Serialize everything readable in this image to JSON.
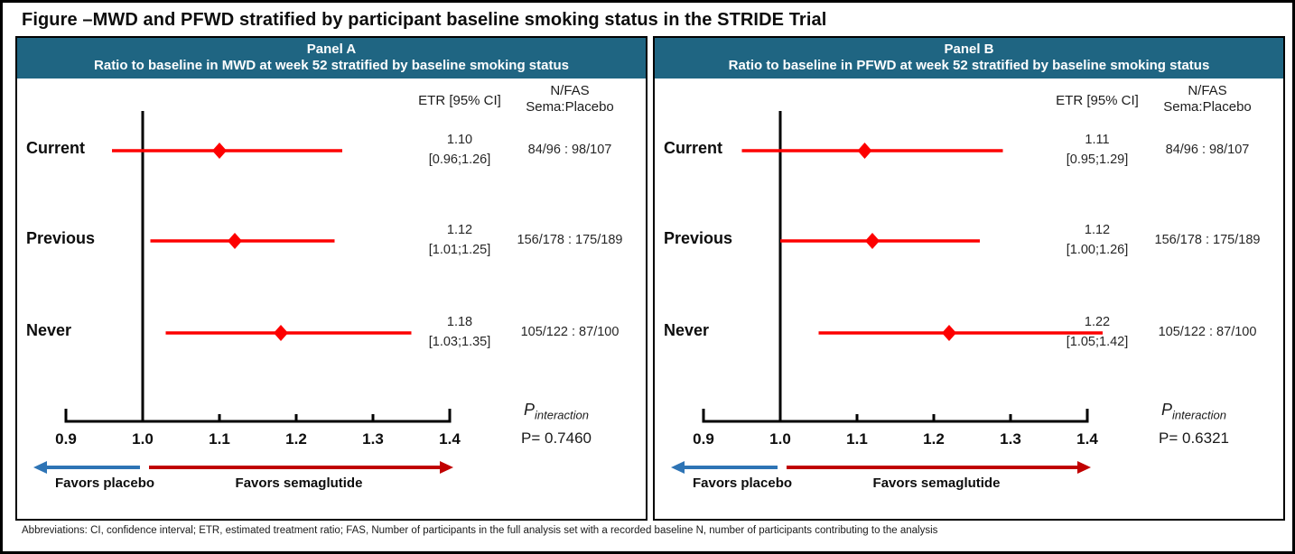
{
  "figure": {
    "title": "Figure –MWD and PFWD stratified by participant baseline smoking status in the STRIDE Trial",
    "footnote": "Abbreviations: CI, confidence interval; ETR, estimated treatment ratio; FAS, Number of participants in the full analysis set with a recorded baseline N, number of participants contributing to the analysis"
  },
  "colors": {
    "panel_header_bg": "#1f6582",
    "ci_line_red": "#fd0000",
    "favors_left_blue": "#2e74b5",
    "favors_right_red": "#c00000",
    "axis_black": "#000000"
  },
  "chart_data": [
    {
      "type": "forest",
      "panel_label": "Panel A",
      "subtitle": "Ratio to baseline in MWD at week 52 stratified by baseline smoking status",
      "col_headers": {
        "etr": "ETR [95% CI]",
        "nfas_line1": "N/FAS",
        "nfas_line2": "Sema:Placebo"
      },
      "x_range": [
        0.9,
        1.4
      ],
      "ref_line": 1.0,
      "x_ticks": [
        "0.9",
        "1.0",
        "1.1",
        "1.2",
        "1.3",
        "1.4"
      ],
      "rows": [
        {
          "label": "Current",
          "est": 1.1,
          "lo": 0.96,
          "hi": 1.26,
          "est_text": "1.10",
          "ci_text": "[0.96;1.26]",
          "nfas": "84/96 : 98/107"
        },
        {
          "label": "Previous",
          "est": 1.12,
          "lo": 1.01,
          "hi": 1.25,
          "est_text": "1.12",
          "ci_text": "[1.01;1.25]",
          "nfas": "156/178 : 175/189"
        },
        {
          "label": "Never",
          "est": 1.18,
          "lo": 1.03,
          "hi": 1.35,
          "est_text": "1.18",
          "ci_text": "[1.03;1.35]",
          "nfas": "105/122 : 87/100"
        }
      ],
      "p_symbol": "P",
      "p_sub": "interaction",
      "p_value": "P= 0.7460",
      "favors_left": "Favors placebo",
      "favors_right": "Favors semaglutide"
    },
    {
      "type": "forest",
      "panel_label": "Panel B",
      "subtitle": "Ratio to baseline in PFWD at week 52 stratified by baseline smoking status",
      "col_headers": {
        "etr": "ETR [95% CI]",
        "nfas_line1": "N/FAS",
        "nfas_line2": "Sema:Placebo"
      },
      "x_range": [
        0.9,
        1.4
      ],
      "ref_line": 1.0,
      "x_ticks": [
        "0.9",
        "1.0",
        "1.1",
        "1.2",
        "1.3",
        "1.4"
      ],
      "rows": [
        {
          "label": "Current",
          "est": 1.11,
          "lo": 0.95,
          "hi": 1.29,
          "est_text": "1.11",
          "ci_text": "[0.95;1.29]",
          "nfas": "84/96 : 98/107"
        },
        {
          "label": "Previous",
          "est": 1.12,
          "lo": 1.0,
          "hi": 1.26,
          "est_text": "1.12",
          "ci_text": "[1.00;1.26]",
          "nfas": "156/178 : 175/189"
        },
        {
          "label": "Never",
          "est": 1.22,
          "lo": 1.05,
          "hi": 1.42,
          "est_text": "1.22",
          "ci_text": "[1.05;1.42]",
          "nfas": "105/122 : 87/100"
        }
      ],
      "p_symbol": "P",
      "p_sub": "interaction",
      "p_value": "P= 0.6321",
      "favors_left": "Favors placebo",
      "favors_right": "Favors semaglutide"
    }
  ]
}
